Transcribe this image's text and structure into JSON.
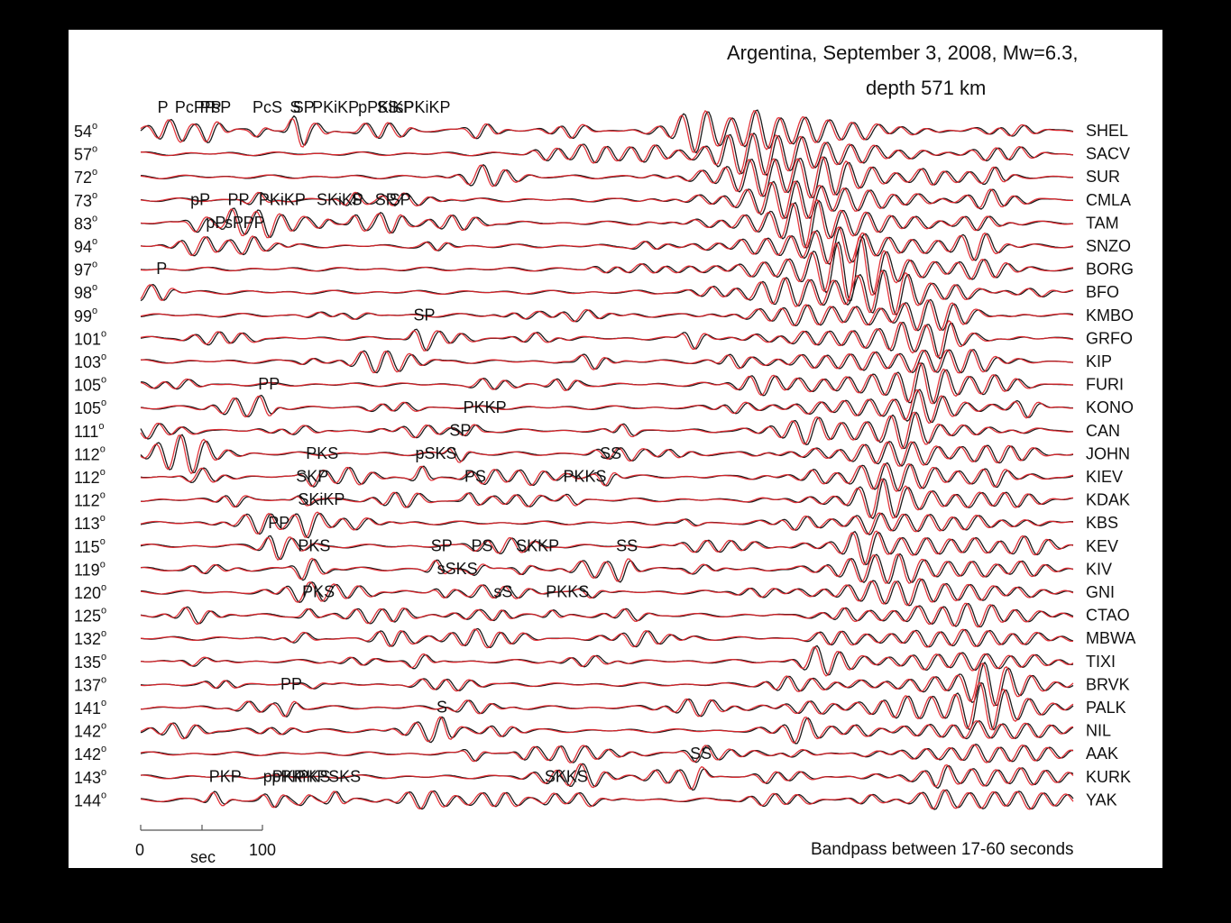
{
  "chart_data": {
    "type": "line",
    "title_line1": "Argentina, September 3, 2008, Mw=6.3,",
    "title_line2": "depth 571 km",
    "note": "Bandpass between 17-60 seconds",
    "xlabel": "sec",
    "scale_ticks": [
      "0",
      "100"
    ],
    "distance_unit": "o",
    "series_colors": {
      "observed": "#1a1a1a",
      "synthetic": "#e0242a"
    },
    "traces": [
      {
        "distance": "54",
        "station": "SHEL"
      },
      {
        "distance": "57",
        "station": "SACV"
      },
      {
        "distance": "72",
        "station": "SUR"
      },
      {
        "distance": "73",
        "station": "CMLA"
      },
      {
        "distance": "83",
        "station": "TAM"
      },
      {
        "distance": "94",
        "station": "SNZO"
      },
      {
        "distance": "97",
        "station": "BORG"
      },
      {
        "distance": "98",
        "station": "BFO"
      },
      {
        "distance": "99",
        "station": "KMBO"
      },
      {
        "distance": "101",
        "station": "GRFO"
      },
      {
        "distance": "103",
        "station": "KIP"
      },
      {
        "distance": "105",
        "station": "FURI"
      },
      {
        "distance": "105",
        "station": "KONO"
      },
      {
        "distance": "111",
        "station": "CAN"
      },
      {
        "distance": "112",
        "station": "JOHN"
      },
      {
        "distance": "112",
        "station": "KIEV"
      },
      {
        "distance": "112",
        "station": "KDAK"
      },
      {
        "distance": "113",
        "station": "KBS"
      },
      {
        "distance": "115",
        "station": "KEV"
      },
      {
        "distance": "119",
        "station": "KIV"
      },
      {
        "distance": "120",
        "station": "GNI"
      },
      {
        "distance": "125",
        "station": "CTAO"
      },
      {
        "distance": "132",
        "station": "MBWA"
      },
      {
        "distance": "135",
        "station": "TIXI"
      },
      {
        "distance": "137",
        "station": "BRVK"
      },
      {
        "distance": "141",
        "station": "PALK"
      },
      {
        "distance": "142",
        "station": "NIL"
      },
      {
        "distance": "142",
        "station": "AAK"
      },
      {
        "distance": "143",
        "station": "KURK"
      },
      {
        "distance": "144",
        "station": "YAK"
      }
    ],
    "phase_labels": [
      {
        "text": "P",
        "t": 27,
        "row": 0
      },
      {
        "text": "PcPP",
        "t": 55,
        "row": 0
      },
      {
        "text": "PP",
        "t": 95,
        "row": 0
      },
      {
        "text": "sP",
        "t": 115,
        "row": 0
      },
      {
        "text": "PcS",
        "t": 180,
        "row": 0
      },
      {
        "text": "S",
        "t": 240,
        "row": 0
      },
      {
        "text": "SP",
        "t": 245,
        "row": 0
      },
      {
        "text": "PKiKP",
        "t": 276,
        "row": 0
      },
      {
        "text": "pPKiKP",
        "t": 350,
        "row": 0
      },
      {
        "text": "SS",
        "t": 380,
        "row": 0
      },
      {
        "text": "sPKiKP",
        "t": 410,
        "row": 0
      },
      {
        "text": "pP",
        "t": 80,
        "row": 4
      },
      {
        "text": "PP",
        "t": 140,
        "row": 4
      },
      {
        "text": "PKiKP",
        "t": 190,
        "row": 4
      },
      {
        "text": "SKiKP",
        "t": 283,
        "row": 4
      },
      {
        "text": "SP",
        "t": 377,
        "row": 4
      },
      {
        "text": "S",
        "t": 339,
        "row": 4
      },
      {
        "text": "SP",
        "t": 400,
        "row": 4
      },
      {
        "text": "pP",
        "t": 105,
        "row": 5
      },
      {
        "text": "sP",
        "t": 135,
        "row": 5
      },
      {
        "text": "PP",
        "t": 165,
        "row": 5
      },
      {
        "text": "P",
        "t": 25,
        "row": 7
      },
      {
        "text": "SP",
        "t": 439,
        "row": 9
      },
      {
        "text": "PP",
        "t": 189,
        "row": 12
      },
      {
        "text": "PKKP",
        "t": 519,
        "row": 13
      },
      {
        "text": "SP",
        "t": 497,
        "row": 14
      },
      {
        "text": "PKS",
        "t": 266,
        "row": 15
      },
      {
        "text": "pSKS",
        "t": 442,
        "row": 15
      },
      {
        "text": "SS",
        "t": 739,
        "row": 15
      },
      {
        "text": "PKKS",
        "t": 680,
        "row": 16
      },
      {
        "text": "PS",
        "t": 521,
        "row": 16
      },
      {
        "text": "SKP",
        "t": 250,
        "row": 16
      },
      {
        "text": "SKiKP",
        "t": 253,
        "row": 17
      },
      {
        "text": "PP",
        "t": 205,
        "row": 18
      },
      {
        "text": "PKS",
        "t": 253,
        "row": 19
      },
      {
        "text": "SP",
        "t": 467,
        "row": 19
      },
      {
        "text": "PS",
        "t": 532,
        "row": 19
      },
      {
        "text": "SKKP",
        "t": 604,
        "row": 19
      },
      {
        "text": "SS",
        "t": 765,
        "row": 19
      },
      {
        "text": "sSKS",
        "t": 477,
        "row": 20
      },
      {
        "text": "PKS",
        "t": 260,
        "row": 21
      },
      {
        "text": "sS",
        "t": 568,
        "row": 21
      },
      {
        "text": "PKKS",
        "t": 652,
        "row": 21
      },
      {
        "text": "PP",
        "t": 225,
        "row": 25
      },
      {
        "text": "S",
        "t": 476,
        "row": 26
      },
      {
        "text": "SS",
        "t": 884,
        "row": 28
      },
      {
        "text": "SKS",
        "t": 302,
        "row": 29
      },
      {
        "text": "PKP",
        "t": 110,
        "row": 30
      },
      {
        "text": "SKKS",
        "t": 650,
        "row": 30
      },
      {
        "text": "pPKP",
        "t": 197,
        "row": 30
      },
      {
        "text": "PKS",
        "t": 253,
        "row": 30
      },
      {
        "text": "pPKiKP",
        "t": 211,
        "row": 31
      }
    ]
  }
}
